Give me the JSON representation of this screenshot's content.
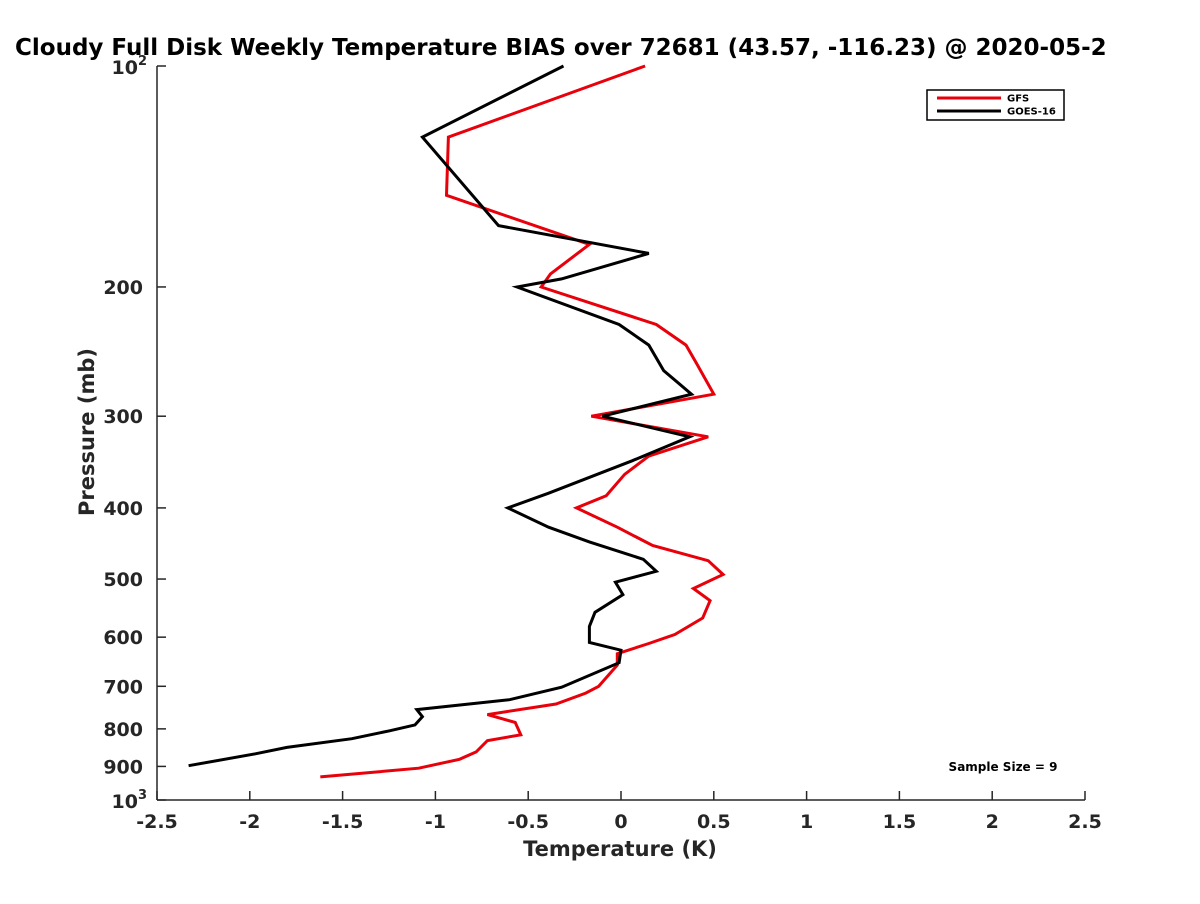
{
  "chart_data": {
    "type": "line",
    "title": "Cloudy Full Disk Weekly Temperature BIAS over 72681 (43.57, -116.23) @ 2020-05-2",
    "xlabel": "Temperature (K)",
    "ylabel": "Pressure (mb)",
    "xlim": [
      -2.5,
      2.5
    ],
    "ylim": [
      100,
      1000
    ],
    "y_scale": "log",
    "y_reversed": true,
    "grid": false,
    "x_ticks": [
      -2.5,
      -2,
      -1.5,
      -1,
      -0.5,
      0,
      0.5,
      1,
      1.5,
      2,
      2.5
    ],
    "x_tick_labels": [
      "-2.5",
      "-2",
      "-1.5",
      "-1",
      "-0.5",
      "0",
      "0.5",
      "1",
      "1.5",
      "2",
      "2.5"
    ],
    "y_ticks": [
      {
        "value": 100,
        "label": "10",
        "exponent": "2"
      },
      {
        "value": 200,
        "label": "200"
      },
      {
        "value": 300,
        "label": "300"
      },
      {
        "value": 400,
        "label": "400"
      },
      {
        "value": 500,
        "label": "500"
      },
      {
        "value": 600,
        "label": "600"
      },
      {
        "value": 700,
        "label": "700"
      },
      {
        "value": 800,
        "label": "800"
      },
      {
        "value": 900,
        "label": "900"
      },
      {
        "value": 1000,
        "label": "10",
        "exponent": "3"
      }
    ],
    "legend_position": "top-right",
    "series": [
      {
        "name": "GFS",
        "color": "#e8000b",
        "points": [
          [
            0.13,
            100
          ],
          [
            -0.93,
            125
          ],
          [
            -0.94,
            150
          ],
          [
            -0.17,
            175
          ],
          [
            -0.38,
            192
          ],
          [
            -0.43,
            200
          ],
          [
            0.19,
            225
          ],
          [
            0.35,
            240
          ],
          [
            0.41,
            255
          ],
          [
            0.5,
            280
          ],
          [
            -0.16,
            300
          ],
          [
            0.47,
            320
          ],
          [
            0.15,
            340
          ],
          [
            0.02,
            360
          ],
          [
            -0.08,
            385
          ],
          [
            -0.24,
            400
          ],
          [
            -0.02,
            425
          ],
          [
            0.17,
            450
          ],
          [
            0.47,
            472
          ],
          [
            0.55,
            493
          ],
          [
            0.39,
            515
          ],
          [
            0.48,
            535
          ],
          [
            0.44,
            565
          ],
          [
            0.29,
            595
          ],
          [
            0.15,
            612
          ],
          [
            -0.02,
            632
          ],
          [
            -0.02,
            655
          ],
          [
            -0.12,
            700
          ],
          [
            -0.19,
            715
          ],
          [
            -0.35,
            740
          ],
          [
            -0.72,
            765
          ],
          [
            -0.57,
            784
          ],
          [
            -0.54,
            815
          ],
          [
            -0.72,
            830
          ],
          [
            -0.78,
            860
          ],
          [
            -0.87,
            880
          ],
          [
            -1.09,
            905
          ],
          [
            -1.62,
            930
          ]
        ]
      },
      {
        "name": "GOES-16",
        "color": "#000000",
        "points": [
          [
            -0.31,
            100
          ],
          [
            -1.07,
            125
          ],
          [
            -0.66,
            165
          ],
          [
            0.15,
            180
          ],
          [
            -0.32,
            195
          ],
          [
            -0.56,
            200
          ],
          [
            -0.01,
            225
          ],
          [
            0.15,
            240
          ],
          [
            0.23,
            260
          ],
          [
            0.38,
            280
          ],
          [
            -0.1,
            300
          ],
          [
            0.37,
            320
          ],
          [
            0.06,
            345
          ],
          [
            -0.39,
            382
          ],
          [
            -0.61,
            400
          ],
          [
            -0.39,
            425
          ],
          [
            -0.17,
            445
          ],
          [
            0.12,
            470
          ],
          [
            0.19,
            488
          ],
          [
            -0.03,
            505
          ],
          [
            0.01,
            525
          ],
          [
            -0.14,
            555
          ],
          [
            -0.17,
            580
          ],
          [
            -0.17,
            610
          ],
          [
            0.0,
            625
          ],
          [
            -0.01,
            650
          ],
          [
            -0.32,
            702
          ],
          [
            -0.6,
            730
          ],
          [
            -1.1,
            753
          ],
          [
            -1.07,
            770
          ],
          [
            -1.11,
            790
          ],
          [
            -1.25,
            805
          ],
          [
            -1.45,
            825
          ],
          [
            -1.8,
            848
          ],
          [
            -1.97,
            865
          ],
          [
            -2.33,
            898
          ]
        ]
      }
    ],
    "annotation": "Sample Size = 9"
  }
}
